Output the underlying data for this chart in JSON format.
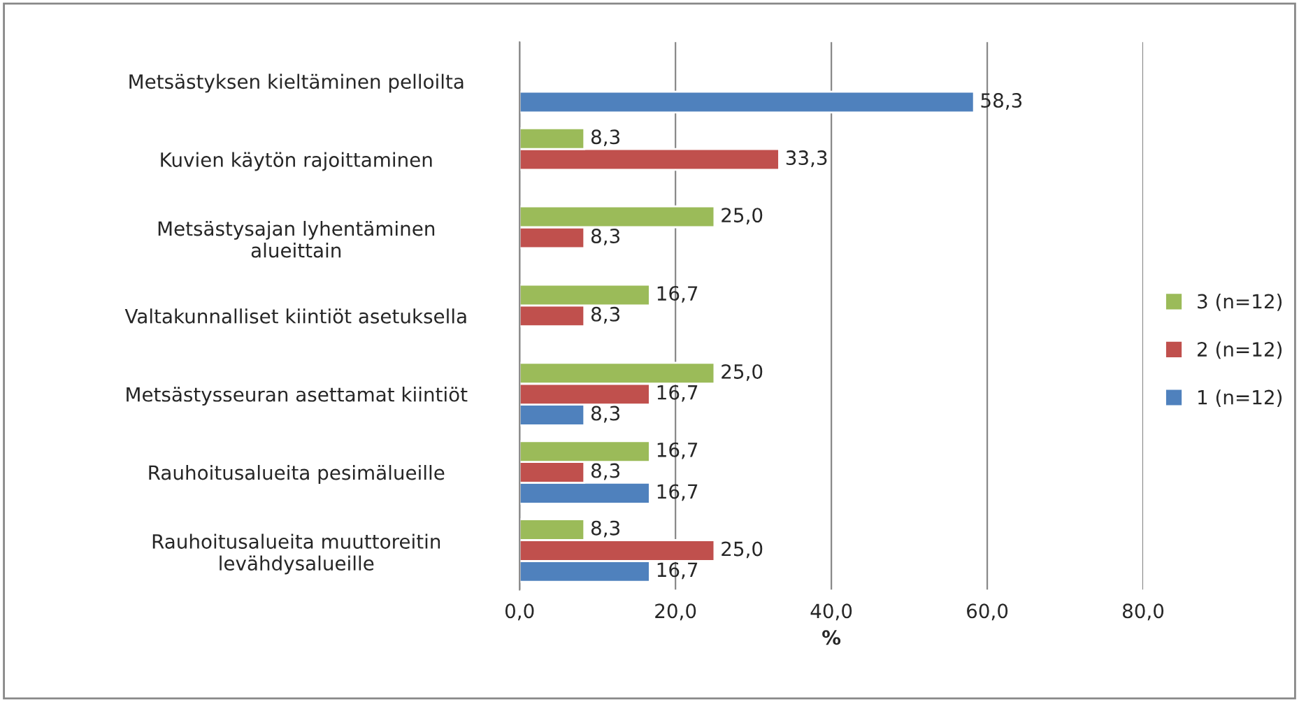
{
  "chart_data": {
    "type": "bar",
    "orientation": "horizontal",
    "xlabel": "%",
    "categories": [
      "Metsästyksen kieltäminen pelloilta",
      "Kuvien käytön rajoittaminen",
      "Metsästysajan lyhentäminen\nalueittain",
      "Valtakunnalliset kiintiöt asetuksella",
      "Metsästysseuran asettamat kiintiöt",
      "Rauhoitusalueita pesimälueille",
      "Rauhoitusalueita muuttoreitin\nlevähdysalueille"
    ],
    "series": [
      {
        "name": "1 (n=12)",
        "color": "#4f81bd",
        "values": [
          58.3,
          null,
          null,
          null,
          8.3,
          16.7,
          16.7
        ],
        "value_labels": [
          "58,3",
          null,
          null,
          null,
          "8,3",
          "16,7",
          "16,7"
        ]
      },
      {
        "name": "2 (n=12)",
        "color": "#c0504d",
        "values": [
          null,
          33.3,
          8.3,
          8.3,
          16.7,
          8.3,
          25.0
        ],
        "value_labels": [
          null,
          "33,3",
          "8,3",
          "8,3",
          "16,7",
          "8,3",
          "25,0"
        ]
      },
      {
        "name": "3 (n=12)",
        "color": "#9bbb59",
        "values": [
          null,
          8.3,
          25.0,
          16.7,
          25.0,
          16.7,
          8.3
        ],
        "value_labels": [
          null,
          "8,3",
          "25,0",
          "16,7",
          "25,0",
          "16,7",
          "8,3"
        ]
      }
    ],
    "xlim": [
      0,
      80
    ],
    "xticks": [
      {
        "value": 0,
        "label": "0,0"
      },
      {
        "value": 20,
        "label": "20,0"
      },
      {
        "value": 40,
        "label": "40,0"
      },
      {
        "value": 60,
        "label": "60,0"
      },
      {
        "value": 80,
        "label": "80,0"
      }
    ],
    "grid": "x",
    "legend": "right"
  }
}
